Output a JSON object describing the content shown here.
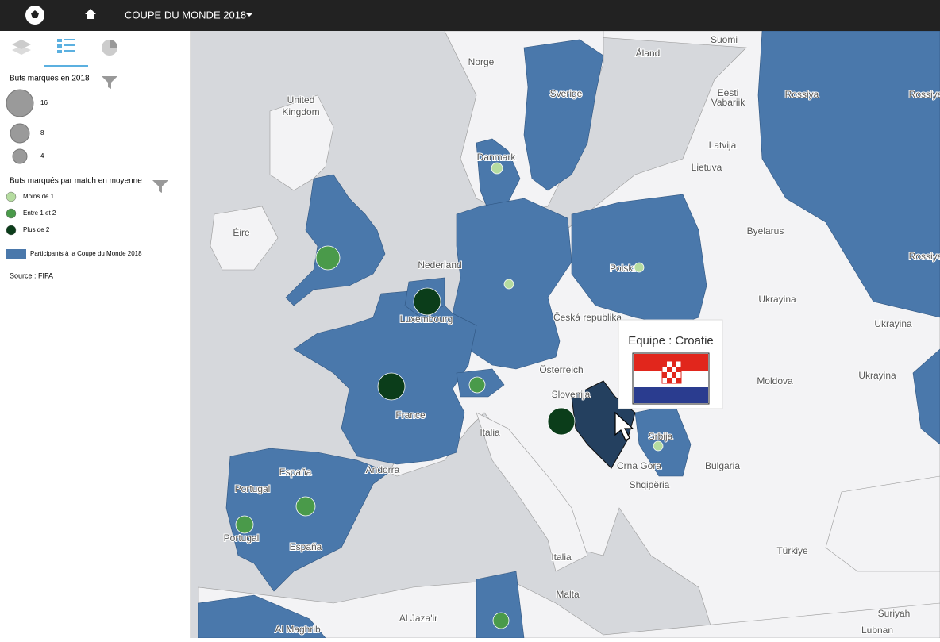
{
  "navbar": {
    "title": "COUPE DU MONDE 2018"
  },
  "legend": {
    "size_title": "Buts marqués en 2018",
    "sizes": [
      "16",
      "8",
      "4"
    ],
    "color_title": "Buts marqués par match en moyenne",
    "classes": [
      "Moins de 1",
      "Entre 1 et 2",
      "Plus de 2"
    ],
    "participants": "Participants à la Coupe du Monde 2018",
    "source": "Source : FIFA"
  },
  "map": {
    "labels": [
      "Norge",
      "Sverige",
      "Suomi",
      "Åland",
      "Eesti",
      "Vabariik",
      "Latvija",
      "Lietuva",
      "Rossiya",
      "Rossiya",
      "United",
      "Kingdom",
      "Éire",
      "Danmark",
      "Nederland",
      "Luxembourg",
      "Polska",
      "Byelarus",
      "Ukrayina",
      "Ukrayina",
      "Česká republika",
      "Österreich",
      "Slovenija",
      "Italia",
      "France",
      "España",
      "España",
      "Portugal",
      "Portugal",
      "Andorra",
      "Moldova",
      "Bulgaria",
      "Shqipëria",
      "Türkiye",
      "Malta",
      "Al Jaza'ir",
      "Al Maghrib",
      "Suriyah",
      "Lubnan",
      "Srbija",
      "Crna Gora",
      "Italia",
      "Ukrayina",
      "Rossiya"
    ]
  },
  "tooltip": {
    "text": "Equipe : Croatie"
  }
}
